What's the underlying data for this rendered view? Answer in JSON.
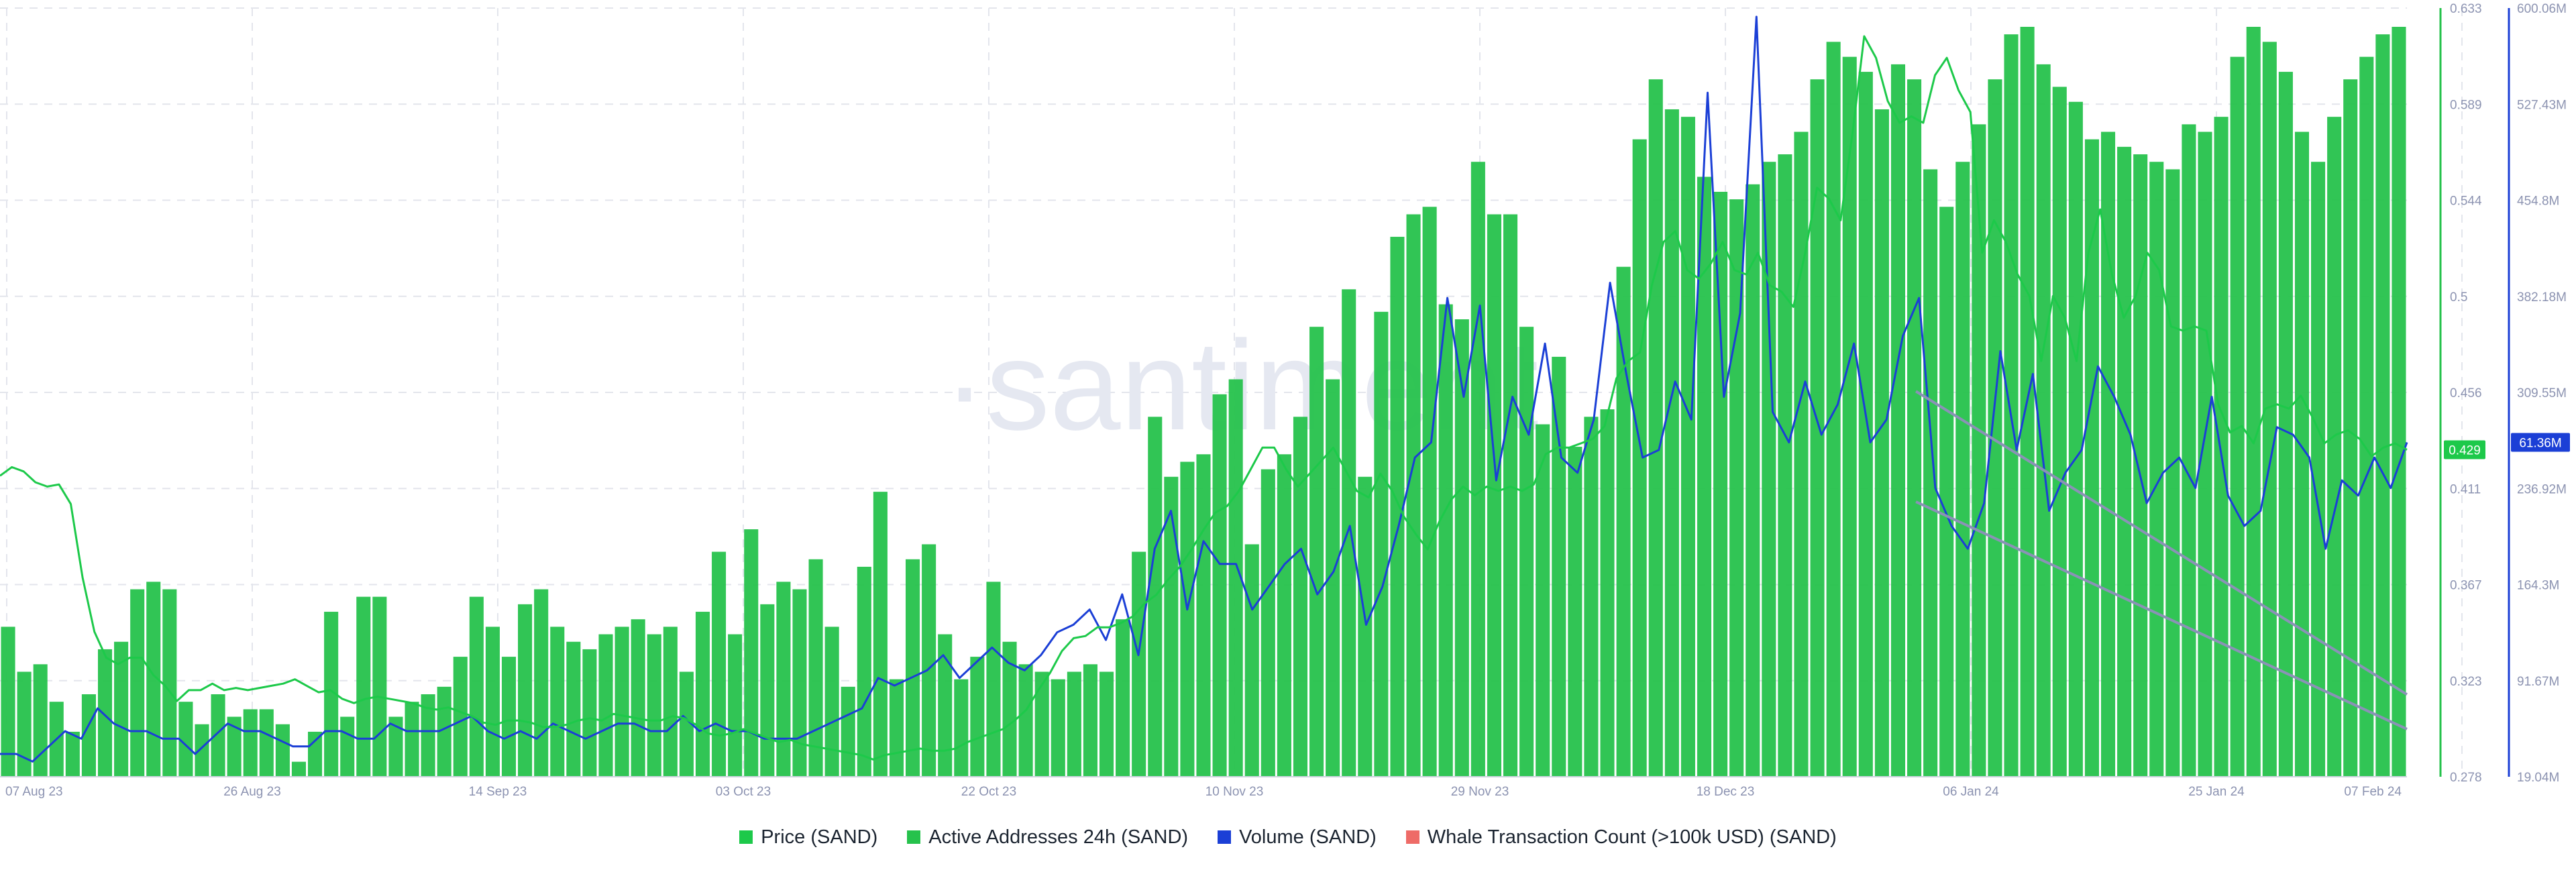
{
  "watermark": "·santiment",
  "colors": {
    "price": "#1dc94a",
    "active_addresses": "#26c24c",
    "volume": "#1b3fd6",
    "whale": "#ee6b67",
    "trendline": "#8a92b6",
    "grid": "#e3e5ec",
    "axis_text": "#8c93b1"
  },
  "chart_data": {
    "type": "bar",
    "x_ticks": [
      "07 Aug 23",
      "26 Aug 23",
      "14 Sep 23",
      "03 Oct 23",
      "22 Oct 23",
      "10 Nov 23",
      "29 Nov 23",
      "18 Dec 23",
      "06 Jan 24",
      "25 Jan 24",
      "07 Feb 24"
    ],
    "price_axis": {
      "ticks": [
        "0.633",
        "0.589",
        "0.544",
        "0.5",
        "0.456",
        "0.411",
        "0.367",
        "0.323",
        "0.278"
      ],
      "min": 0.278,
      "max": 0.633,
      "current": "0.429"
    },
    "volume_axis": {
      "ticks": [
        "600.06M",
        "527.43M",
        "454.8M",
        "382.18M",
        "309.55M",
        "236.92M",
        "164.3M",
        "91.67M",
        "19.04M"
      ],
      "min": 19.04,
      "max": 600.06,
      "current": "61.36M"
    },
    "series": [
      {
        "name": "Price (SAND)",
        "points_start": "07 Aug 23",
        "points_end": "07 Feb 24",
        "values": [
          0.417,
          0.421,
          0.419,
          0.414,
          0.412,
          0.413,
          0.404,
          0.37,
          0.345,
          0.333,
          0.33,
          0.333,
          0.333,
          0.325,
          0.32,
          0.313,
          0.318,
          0.318,
          0.321,
          0.318,
          0.319,
          0.318,
          0.319,
          0.32,
          0.321,
          0.323,
          0.32,
          0.317,
          0.318,
          0.314,
          0.312,
          0.314,
          0.315,
          0.314,
          0.313,
          0.312,
          0.31,
          0.309,
          0.31,
          0.308,
          0.306,
          0.303,
          0.302,
          0.304,
          0.304,
          0.303,
          0.301,
          0.301,
          0.302,
          0.304,
          0.305,
          0.304,
          0.307,
          0.306,
          0.305,
          0.304,
          0.304,
          0.306,
          0.305,
          0.302,
          0.298,
          0.297,
          0.298,
          0.3,
          0.298,
          0.296,
          0.294,
          0.295,
          0.293,
          0.292,
          0.291,
          0.29,
          0.289,
          0.288,
          0.286,
          0.288,
          0.289,
          0.29,
          0.291,
          0.29,
          0.29,
          0.291,
          0.294,
          0.296,
          0.298,
          0.3,
          0.304,
          0.309,
          0.318,
          0.326,
          0.336,
          0.342,
          0.343,
          0.347,
          0.347,
          0.349,
          0.352,
          0.358,
          0.362,
          0.369,
          0.375,
          0.383,
          0.392,
          0.4,
          0.403,
          0.41,
          0.42,
          0.43,
          0.43,
          0.42,
          0.412,
          0.418,
          0.424,
          0.43,
          0.42,
          0.41,
          0.407,
          0.418,
          0.41,
          0.398,
          0.39,
          0.383,
          0.396,
          0.406,
          0.412,
          0.408,
          0.412,
          0.41,
          0.412,
          0.41,
          0.413,
          0.427,
          0.43,
          0.43,
          0.432,
          0.434,
          0.44,
          0.462,
          0.47,
          0.474,
          0.505,
          0.525,
          0.53,
          0.512,
          0.508,
          0.515,
          0.525,
          0.512,
          0.51,
          0.52,
          0.505,
          0.502,
          0.495,
          0.52,
          0.55,
          0.545,
          0.535,
          0.575,
          0.62,
          0.61,
          0.59,
          0.58,
          0.583,
          0.58,
          0.602,
          0.61,
          0.595,
          0.585,
          0.52,
          0.535,
          0.525,
          0.51,
          0.5,
          0.47,
          0.5,
          0.49,
          0.47,
          0.52,
          0.54,
          0.51,
          0.49,
          0.5,
          0.52,
          0.512,
          0.486,
          0.484,
          0.486,
          0.484,
          0.45,
          0.437,
          0.44,
          0.432,
          0.448,
          0.45,
          0.448,
          0.454,
          0.444,
          0.432,
          0.436,
          0.438,
          0.434,
          0.426,
          0.43,
          0.432,
          0.429
        ]
      },
      {
        "name": "Active Addresses 24h (SAND)"
      },
      {
        "name": "Volume (SAND)"
      },
      {
        "name": "Whale Transaction Count (>100k USD) (SAND)"
      }
    ],
    "active_addresses_rel": [
      0.2,
      0.14,
      0.15,
      0.1,
      0.06,
      0.11,
      0.17,
      0.18,
      0.25,
      0.26,
      0.25,
      0.1,
      0.07,
      0.11,
      0.08,
      0.09,
      0.09,
      0.07,
      0.02,
      0.06,
      0.22,
      0.08,
      0.24,
      0.24,
      0.08,
      0.1,
      0.11,
      0.12,
      0.16,
      0.24,
      0.2,
      0.16,
      0.23,
      0.25,
      0.2,
      0.18,
      0.17,
      0.19,
      0.2,
      0.21,
      0.19,
      0.2,
      0.14,
      0.22,
      0.3,
      0.19,
      0.33,
      0.23,
      0.26,
      0.25,
      0.29,
      0.2,
      0.12,
      0.28,
      0.38,
      0.13,
      0.29,
      0.31,
      0.19,
      0.13,
      0.16,
      0.26,
      0.18,
      0.15,
      0.14,
      0.13,
      0.14,
      0.15,
      0.14,
      0.21,
      0.3,
      0.48,
      0.4,
      0.42,
      0.43,
      0.51,
      0.53,
      0.31,
      0.41,
      0.43,
      0.48,
      0.6,
      0.53,
      0.65,
      0.4,
      0.62,
      0.72,
      0.75,
      0.76,
      0.63,
      0.61,
      0.82,
      0.75,
      0.75,
      0.6,
      0.47,
      0.56,
      0.44,
      0.48,
      0.49,
      0.68,
      0.85,
      0.93,
      0.89,
      0.88,
      0.8,
      0.78,
      0.77,
      0.79,
      0.82,
      0.83,
      0.86,
      0.93,
      0.98,
      0.96,
      0.94,
      0.89,
      0.95,
      0.93,
      0.81,
      0.76,
      0.82,
      0.87,
      0.93,
      0.99,
      1.0,
      0.95,
      0.92,
      0.9,
      0.85,
      0.86,
      0.84,
      0.83,
      0.82,
      0.81,
      0.87,
      0.86,
      0.88,
      0.96,
      1.0,
      0.98,
      0.94,
      0.86,
      0.82,
      0.88,
      0.93,
      0.96,
      0.99,
      1.0
    ],
    "volume_rel": [
      0.03,
      0.03,
      0.02,
      0.04,
      0.06,
      0.05,
      0.09,
      0.07,
      0.06,
      0.06,
      0.05,
      0.05,
      0.03,
      0.05,
      0.07,
      0.06,
      0.06,
      0.05,
      0.04,
      0.04,
      0.06,
      0.06,
      0.05,
      0.05,
      0.07,
      0.06,
      0.06,
      0.06,
      0.07,
      0.08,
      0.06,
      0.05,
      0.06,
      0.05,
      0.07,
      0.06,
      0.05,
      0.06,
      0.07,
      0.07,
      0.06,
      0.06,
      0.08,
      0.06,
      0.07,
      0.06,
      0.06,
      0.05,
      0.05,
      0.05,
      0.06,
      0.07,
      0.08,
      0.09,
      0.13,
      0.12,
      0.13,
      0.14,
      0.16,
      0.13,
      0.15,
      0.17,
      0.15,
      0.14,
      0.16,
      0.19,
      0.2,
      0.22,
      0.18,
      0.24,
      0.16,
      0.3,
      0.35,
      0.22,
      0.31,
      0.28,
      0.28,
      0.22,
      0.25,
      0.28,
      0.3,
      0.24,
      0.27,
      0.33,
      0.2,
      0.25,
      0.33,
      0.42,
      0.44,
      0.63,
      0.5,
      0.62,
      0.39,
      0.5,
      0.45,
      0.57,
      0.42,
      0.4,
      0.47,
      0.65,
      0.53,
      0.42,
      0.43,
      0.52,
      0.47,
      0.9,
      0.5,
      0.61,
      1.0,
      0.48,
      0.44,
      0.52,
      0.45,
      0.49,
      0.57,
      0.44,
      0.47,
      0.58,
      0.63,
      0.38,
      0.33,
      0.3,
      0.36,
      0.56,
      0.43,
      0.53,
      0.35,
      0.4,
      0.43,
      0.54,
      0.5,
      0.45,
      0.36,
      0.4,
      0.42,
      0.38,
      0.5,
      0.37,
      0.33,
      0.35,
      0.46,
      0.45,
      0.42,
      0.3,
      0.39,
      0.37,
      0.42,
      0.38,
      0.44
    ],
    "trendlines": [
      {
        "x0": 0.796,
        "y0": 0.456,
        "x1": 1.0,
        "y1": 0.316
      },
      {
        "x0": 0.796,
        "y0": 0.405,
        "x1": 1.0,
        "y1": 0.3
      }
    ]
  },
  "legend": [
    {
      "label": "Price (SAND)",
      "color_key": "price"
    },
    {
      "label": "Active Addresses 24h (SAND)",
      "color_key": "active_addresses"
    },
    {
      "label": "Volume (SAND)",
      "color_key": "volume"
    },
    {
      "label": "Whale Transaction Count (>100k USD) (SAND)",
      "color_key": "whale"
    }
  ]
}
